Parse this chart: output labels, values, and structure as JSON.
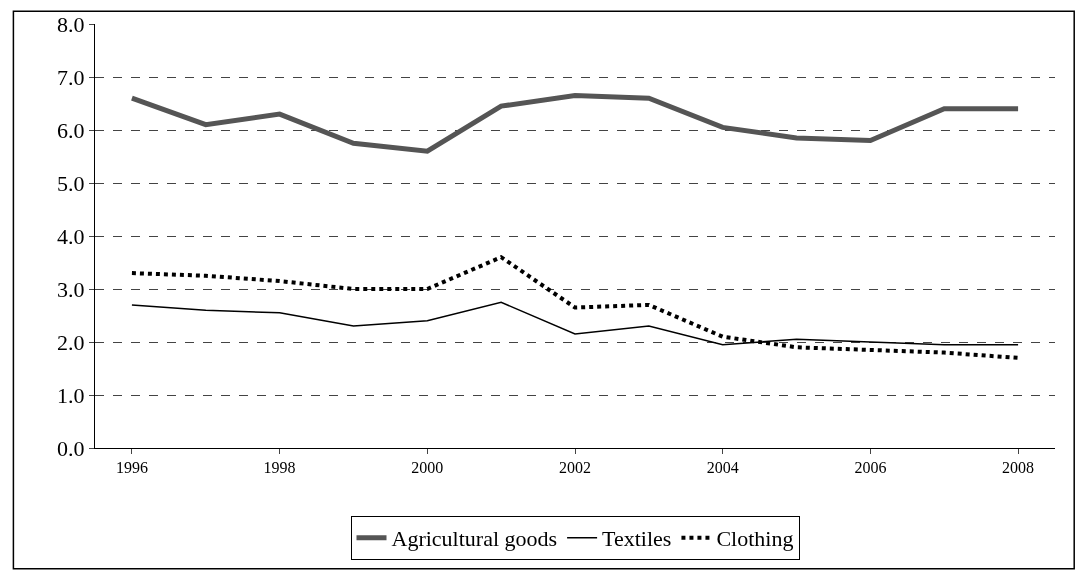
{
  "chart_data": {
    "type": "line",
    "categories": [
      "1996",
      null,
      "1998",
      null,
      "2000",
      null,
      "2002",
      null,
      "2004",
      null,
      "2006",
      null,
      "2008"
    ],
    "ylim": [
      0,
      8
    ],
    "yticks": [
      {
        "value": 0,
        "label": "0.0"
      },
      {
        "value": 1,
        "label": "1.0"
      },
      {
        "value": 2,
        "label": "2.0"
      },
      {
        "value": 3,
        "label": "3.0"
      },
      {
        "value": 4,
        "label": "4.0"
      },
      {
        "value": 5,
        "label": "5.0"
      },
      {
        "value": 6,
        "label": "6.0"
      },
      {
        "value": 7,
        "label": "7.0"
      },
      {
        "value": 8,
        "label": "8.0"
      }
    ],
    "grid": "y",
    "legend": "bottom",
    "marker": "none",
    "series": [
      {
        "name": "Agricultural goods",
        "color": "#555555",
        "line_style": "solid",
        "values": [
          6.6,
          6.1,
          6.3,
          5.75,
          5.6,
          6.45,
          6.65,
          6.6,
          6.05,
          5.85,
          5.8,
          6.4,
          6.4
        ]
      },
      {
        "name": "Textiles",
        "color": "#000000",
        "line_style": "solid",
        "values": [
          2.7,
          2.6,
          2.55,
          2.3,
          2.4,
          2.75,
          2.15,
          2.3,
          1.95,
          2.05,
          2.0,
          1.95,
          1.95
        ]
      },
      {
        "name": "Clothing",
        "color": "#000000",
        "line_style": "dotted",
        "values": [
          3.3,
          3.25,
          3.15,
          3.0,
          3.0,
          3.6,
          2.65,
          2.7,
          2.1,
          1.9,
          1.85,
          1.8,
          1.7
        ]
      }
    ]
  }
}
